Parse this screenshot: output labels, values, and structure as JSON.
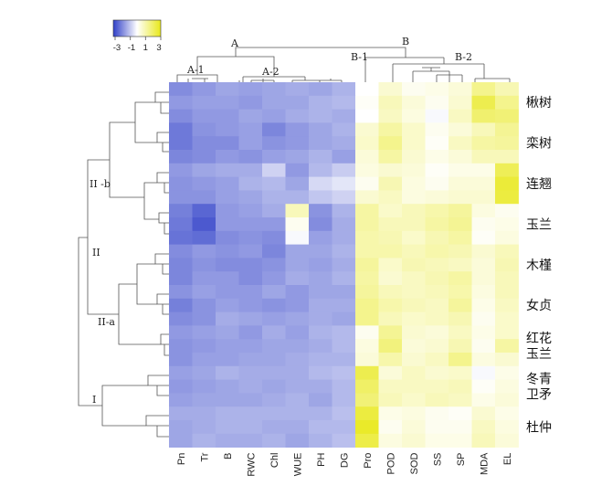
{
  "chart_data": {
    "type": "heatmap",
    "colorbar": {
      "range": [
        -3,
        3
      ],
      "ticks": [
        "-3",
        "-1",
        "1",
        "3"
      ],
      "colors": [
        "#3040c8",
        "#ffffff",
        "#e8e81a"
      ]
    },
    "columns": [
      "Pn",
      "Tr",
      "B",
      "RWC",
      "Chl",
      "WUE",
      "PH",
      "DG",
      "Pro",
      "POD",
      "SOD",
      "SS",
      "SP",
      "MDA",
      "EL"
    ],
    "rows": [
      {
        "species": "楸树",
        "values": [
          [
            -1.8,
            -1.6,
            -1.4,
            -1.5,
            -1.4,
            -1.3,
            -1.4,
            -1.2,
            0.0,
            0.6,
            0.2,
            0.3,
            0.5,
            1.5,
            1.0
          ],
          [
            -1.6,
            -1.5,
            -1.5,
            -1.6,
            -1.4,
            -1.4,
            -1.2,
            -1.1,
            0.1,
            0.9,
            0.5,
            0.2,
            0.6,
            2.3,
            1.5
          ],
          [
            -1.8,
            -1.6,
            -1.6,
            -1.4,
            -1.5,
            -1.3,
            -1.2,
            -1.3,
            0.0,
            0.8,
            0.4,
            -0.1,
            0.8,
            1.9,
            1.8
          ]
        ]
      },
      {
        "species": "栾树",
        "values": [
          [
            -2.1,
            -1.7,
            -1.6,
            -1.5,
            -1.9,
            -1.6,
            -1.4,
            -1.2,
            0.6,
            1.2,
            0.7,
            0.2,
            0.5,
            0.9,
            1.4
          ],
          [
            -2.1,
            -1.8,
            -1.8,
            -1.5,
            -1.7,
            -1.6,
            -1.4,
            -1.3,
            0.7,
            1.5,
            0.7,
            0.1,
            0.8,
            1.2,
            1.3
          ],
          [
            -1.9,
            -1.8,
            -1.6,
            -1.7,
            -1.5,
            -1.4,
            -1.2,
            -1.5,
            0.5,
            1.2,
            0.6,
            0.3,
            0.5,
            0.9,
            0.9
          ]
        ]
      },
      {
        "species": "连翘",
        "values": [
          [
            -1.6,
            -1.4,
            -1.3,
            -1.3,
            -0.7,
            -1.6,
            -1.1,
            -0.8,
            0.4,
            0.6,
            0.5,
            0.1,
            0.3,
            0.3,
            2.2
          ],
          [
            -1.7,
            -1.6,
            -1.5,
            -1.2,
            -1.1,
            -1.4,
            -0.6,
            -0.4,
            0.2,
            1.0,
            0.4,
            0.2,
            0.5,
            0.5,
            2.6
          ],
          [
            -1.7,
            -1.7,
            -1.5,
            -1.4,
            -1.2,
            -1.2,
            -0.9,
            -0.7,
            0.6,
            0.8,
            0.4,
            0.5,
            0.6,
            0.6,
            2.5
          ]
        ]
      },
      {
        "species": "玉兰",
        "values": [
          [
            -2.0,
            -2.4,
            -1.6,
            -1.5,
            -1.3,
            0.9,
            -1.7,
            -1.2,
            1.2,
            0.7,
            0.9,
            1.1,
            1.3,
            0.4,
            0.2
          ],
          [
            -2.1,
            -2.6,
            -1.6,
            -1.6,
            -1.6,
            0.2,
            -1.8,
            -1.3,
            1.2,
            0.9,
            0.9,
            1.2,
            1.4,
            0.2,
            0.3
          ],
          [
            -2.2,
            -2.3,
            -1.8,
            -1.7,
            -1.8,
            -0.1,
            -1.5,
            -1.3,
            1.1,
            1.0,
            0.7,
            1.0,
            1.2,
            0.1,
            0.4
          ]
        ]
      },
      {
        "species": "木槿",
        "values": [
          [
            -1.8,
            -1.6,
            -1.7,
            -1.6,
            -1.9,
            -1.4,
            -1.4,
            -1.2,
            1.1,
            1.1,
            0.9,
            1.1,
            1.0,
            0.6,
            0.9
          ],
          [
            -1.9,
            -1.7,
            -1.8,
            -1.8,
            -1.7,
            -1.4,
            -1.5,
            -1.3,
            1.3,
            0.7,
            1.0,
            0.9,
            0.8,
            0.5,
            1.0
          ],
          [
            -1.9,
            -1.6,
            -1.6,
            -1.8,
            -1.6,
            -1.3,
            -1.4,
            -1.2,
            1.2,
            0.6,
            0.8,
            1.0,
            1.2,
            0.5,
            0.9
          ]
        ]
      },
      {
        "species": "女贞",
        "values": [
          [
            -1.7,
            -1.5,
            -1.6,
            -1.6,
            -1.4,
            -1.6,
            -1.4,
            -1.4,
            1.3,
            0.9,
            0.8,
            0.9,
            1.1,
            0.4,
            0.9
          ],
          [
            -2.0,
            -1.7,
            -1.5,
            -1.6,
            -1.7,
            -1.6,
            -1.3,
            -1.3,
            1.5,
            1.1,
            0.9,
            0.8,
            1.3,
            0.3,
            0.8
          ],
          [
            -1.8,
            -1.7,
            -1.3,
            -1.4,
            -1.5,
            -1.4,
            -1.3,
            -1.4,
            1.5,
            0.9,
            0.7,
            0.8,
            1.0,
            0.2,
            0.7
          ]
        ]
      },
      {
        "species": "红花玉兰",
        "values": [
          [
            -1.6,
            -1.5,
            -1.4,
            -1.6,
            -1.3,
            -1.5,
            -1.2,
            -1.1,
            0.2,
            1.4,
            0.6,
            0.5,
            0.8,
            0.3,
            0.7
          ],
          [
            -1.7,
            -1.6,
            -1.5,
            -1.5,
            -1.4,
            -1.4,
            -1.3,
            -1.1,
            0.4,
            1.7,
            0.5,
            0.6,
            1.0,
            0.2,
            1.2
          ],
          [
            -1.7,
            -1.5,
            -1.5,
            -1.4,
            -1.4,
            -1.3,
            -1.2,
            -1.2,
            0.5,
            1.1,
            0.6,
            0.8,
            1.5,
            0.4,
            0.6
          ]
        ]
      },
      {
        "species": "冬青卫矛",
        "values": [
          [
            -1.5,
            -1.4,
            -1.2,
            -1.3,
            -1.3,
            -1.3,
            -1.1,
            -1.0,
            2.3,
            0.5,
            0.8,
            0.6,
            0.7,
            -0.1,
            0.3
          ],
          [
            -1.6,
            -1.5,
            -1.4,
            -1.3,
            -1.4,
            -1.3,
            -1.3,
            -1.1,
            2.0,
            0.8,
            0.8,
            0.8,
            0.9,
            0.1,
            0.4
          ],
          [
            -1.5,
            -1.4,
            -1.4,
            -1.4,
            -1.3,
            -1.2,
            -1.4,
            -1.1,
            1.8,
            0.9,
            0.7,
            0.9,
            0.8,
            0.3,
            0.5
          ]
        ]
      },
      {
        "species": "杜仲",
        "values": [
          [
            -1.3,
            -1.3,
            -1.2,
            -1.2,
            -1.2,
            -1.2,
            -1.2,
            -1.0,
            2.5,
            0.3,
            0.4,
            0.2,
            0.1,
            0.6,
            0.3
          ],
          [
            -1.4,
            -1.3,
            -1.2,
            -1.2,
            -1.3,
            -1.3,
            -1.1,
            -1.1,
            2.8,
            0.2,
            0.5,
            0.2,
            0.2,
            0.8,
            0.4
          ],
          [
            -1.4,
            -1.2,
            -1.3,
            -1.3,
            -1.2,
            -1.4,
            -1.2,
            -1.0,
            2.4,
            0.4,
            0.6,
            0.3,
            0.3,
            0.9,
            0.5
          ]
        ]
      }
    ],
    "col_cluster_labels": [
      "A",
      "B",
      "A-1",
      "A-2",
      "B-1",
      "B-2"
    ],
    "row_cluster_labels": [
      "II -b",
      "II",
      "II-a",
      "I"
    ]
  },
  "row_label_lines": [
    [
      "楸树"
    ],
    [
      "栾树"
    ],
    [
      "连翘"
    ],
    [
      "玉兰"
    ],
    [
      "木槿"
    ],
    [
      "女贞"
    ],
    [
      "红花",
      "玉兰"
    ],
    [
      "冬青",
      "卫矛"
    ],
    [
      "杜仲"
    ]
  ]
}
